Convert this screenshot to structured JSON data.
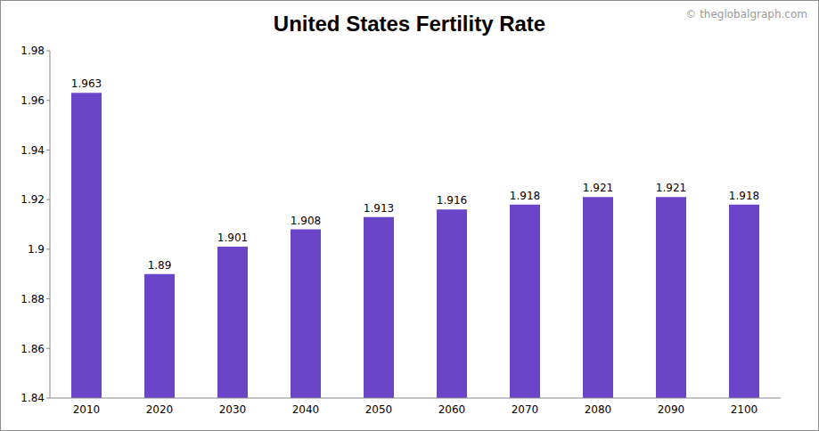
{
  "chart_data": {
    "type": "bar",
    "title": "United States Fertility Rate",
    "annotations": [
      "© theglobalgraph.com"
    ],
    "categories": [
      "2010",
      "2020",
      "2030",
      "2040",
      "2050",
      "2060",
      "2070",
      "2080",
      "2090",
      "2100"
    ],
    "values": [
      1.963,
      1.89,
      1.901,
      1.908,
      1.913,
      1.916,
      1.918,
      1.921,
      1.921,
      1.918
    ],
    "color": "#6a45c8",
    "ylim": [
      1.84,
      1.98
    ],
    "yticks": [
      1.84,
      1.86,
      1.88,
      1.9,
      1.92,
      1.94,
      1.96,
      1.98
    ],
    "grid": false,
    "data_labels": true
  }
}
